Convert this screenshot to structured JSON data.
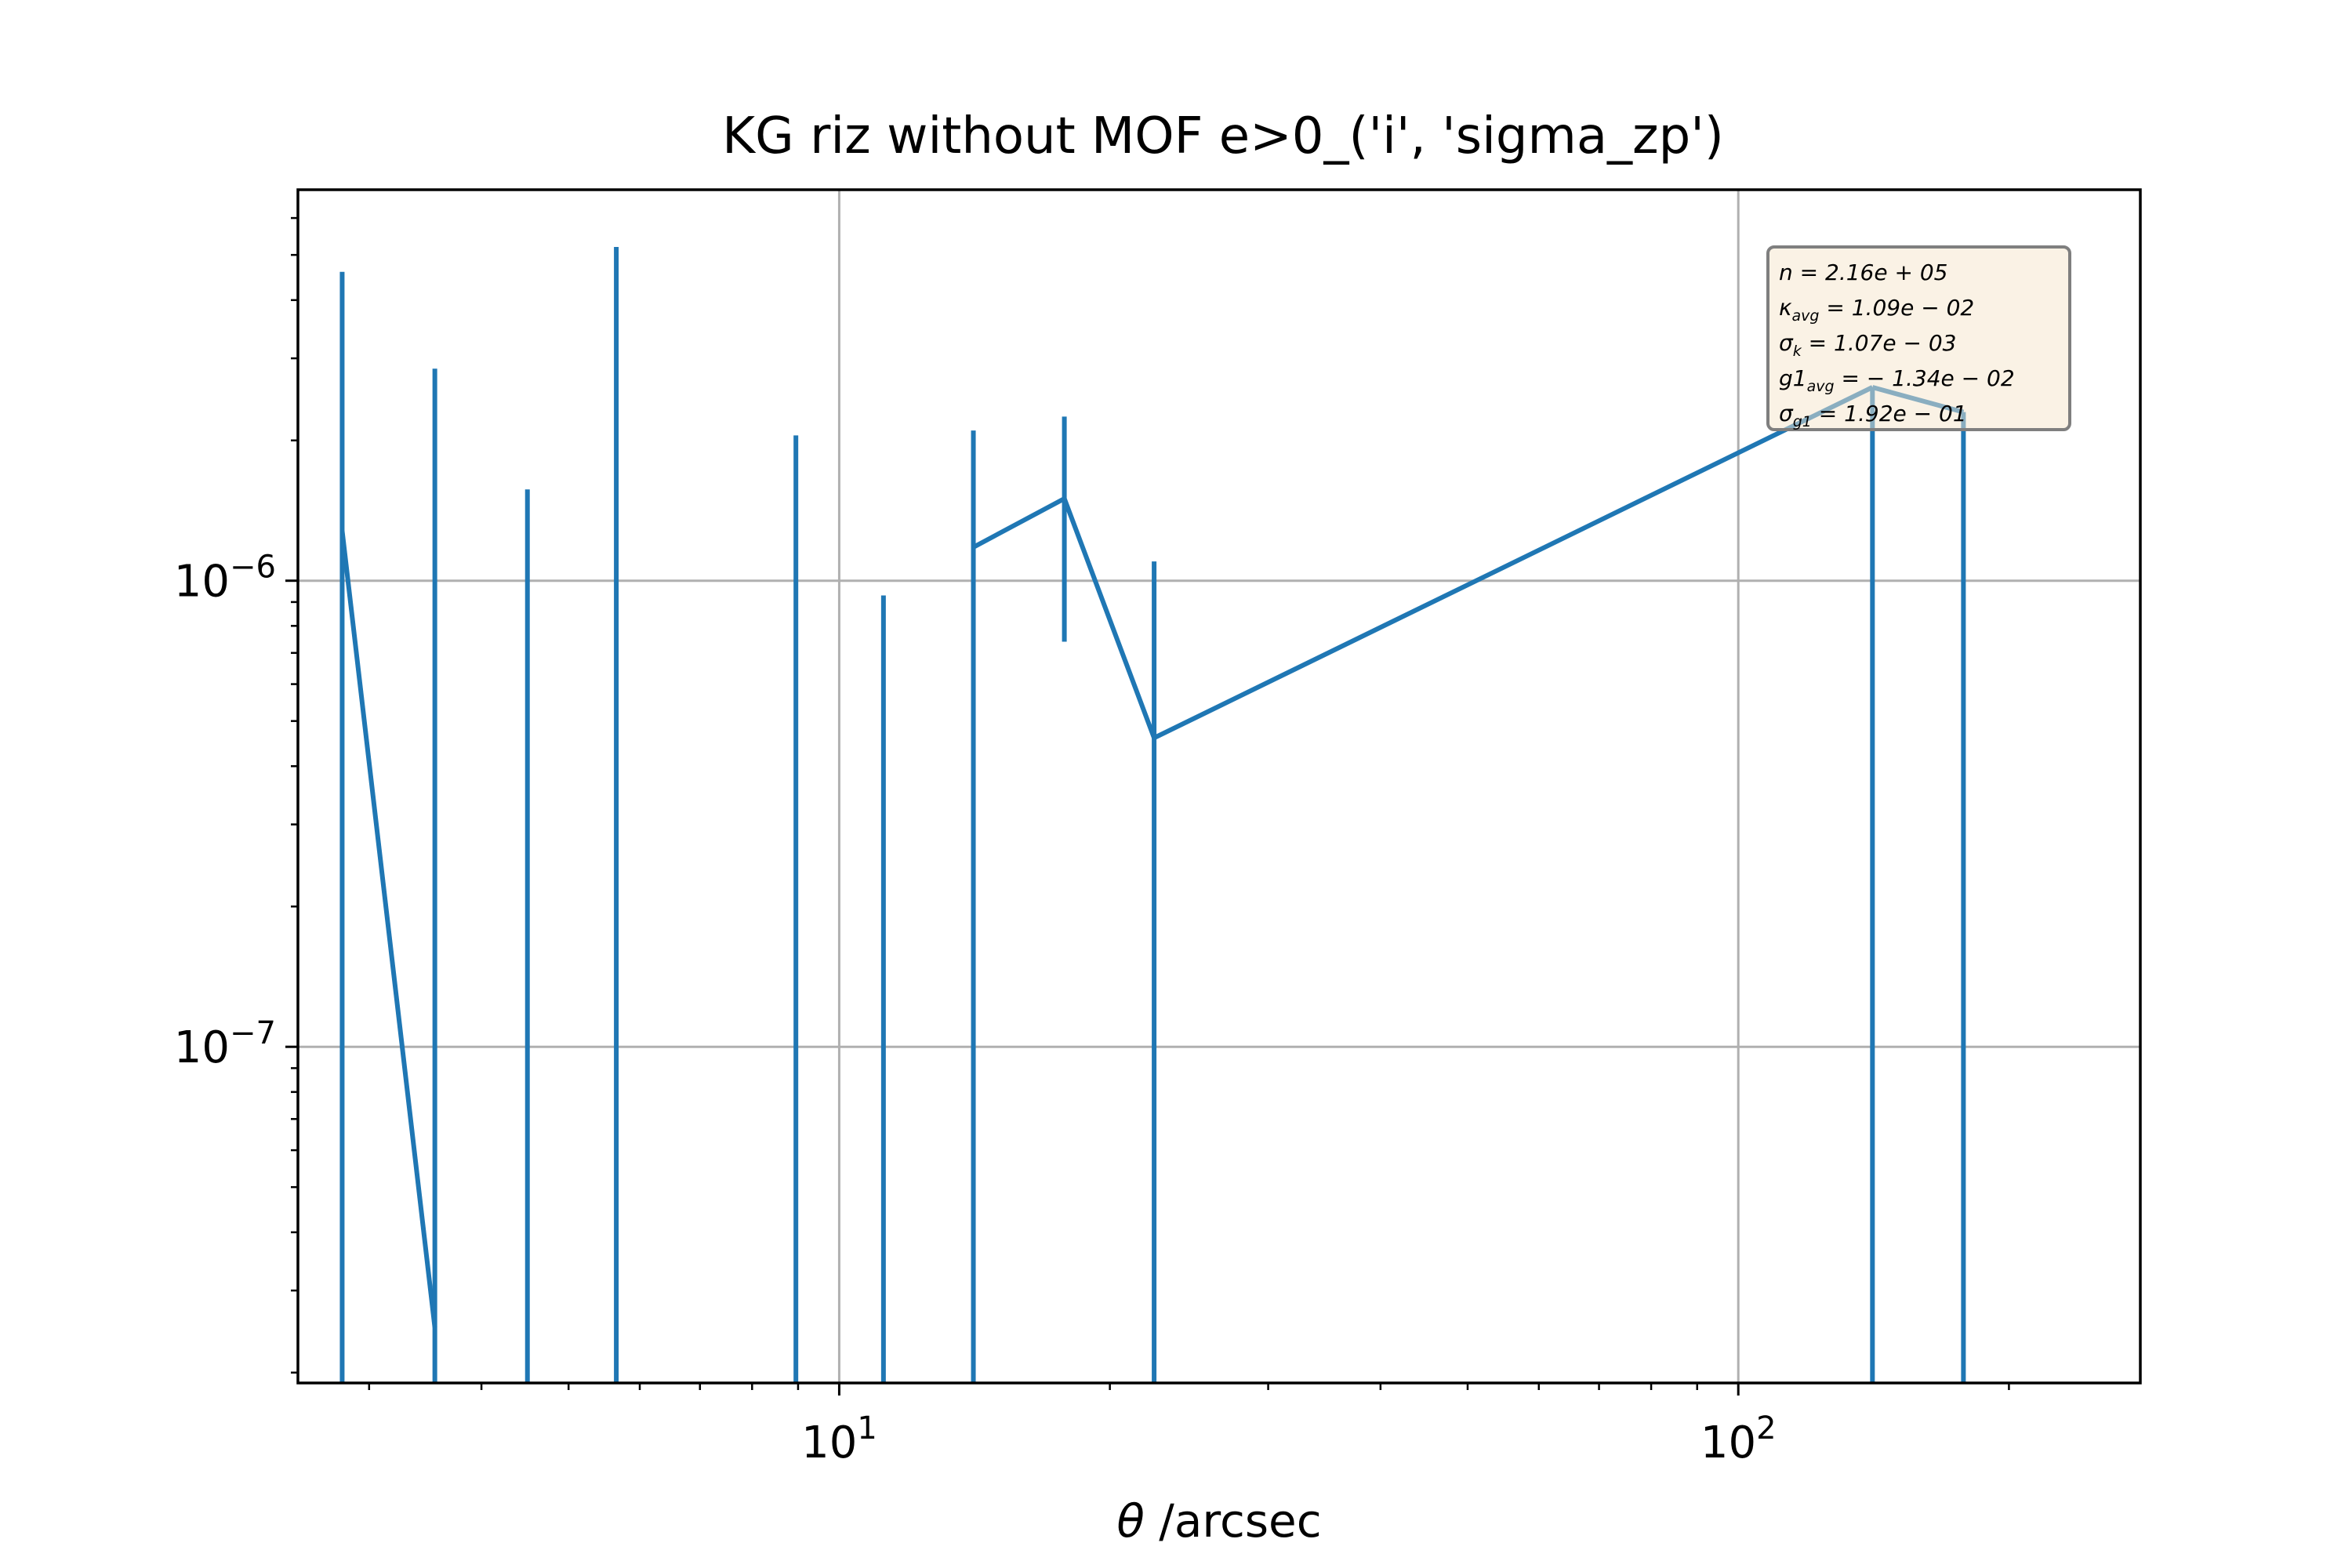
{
  "chart_data": {
    "type": "line",
    "title": "KG riz without MOF e>0_('i', 'sigma_zp')",
    "xlabel_symbol": "θ",
    "xlabel": " /arcsec",
    "ylabel": "",
    "xscale": "log",
    "yscale": "log",
    "xlim": [
      2.5,
      280
    ],
    "ylim": [
      1.9e-08,
      6.9e-06
    ],
    "grid": true,
    "series_color": "#1f77b4",
    "x_ticks": [
      {
        "base": "10",
        "exp": "1",
        "value": 10
      },
      {
        "base": "10",
        "exp": "2",
        "value": 100
      }
    ],
    "y_ticks": [
      {
        "base": "10",
        "exp": "−6",
        "value": 1e-06
      },
      {
        "base": "10",
        "exp": "−7",
        "value": 1e-07
      }
    ],
    "points": [
      {
        "x": 2.8,
        "y": 1.28e-06,
        "err_low": 1.9e-08,
        "err_high": 4.6e-06
      },
      {
        "x": 3.55,
        "y": 2.5e-08,
        "err_low": 1.9e-08,
        "err_high": 2.85e-06
      },
      {
        "x": 4.5,
        "y": null,
        "err_low": 1.9e-08,
        "err_high": 1.57e-06
      },
      {
        "x": 5.65,
        "y": null,
        "err_low": 1.9e-08,
        "err_high": 5.2e-06
      },
      {
        "x": 8.95,
        "y": null,
        "err_low": 1.9e-08,
        "err_high": 2.05e-06
      },
      {
        "x": 11.2,
        "y": null,
        "err_low": 1.9e-08,
        "err_high": 9.3e-07
      },
      {
        "x": 14.1,
        "y": 1.18e-06,
        "err_low": 1.9e-08,
        "err_high": 2.1e-06
      },
      {
        "x": 17.8,
        "y": 1.5e-06,
        "err_low": 7.4e-07,
        "err_high": 2.25e-06
      },
      {
        "x": 22.4,
        "y": 4.6e-07,
        "err_low": 1.9e-08,
        "err_high": 1.1e-06
      },
      {
        "x": 141,
        "y": 2.6e-06,
        "err_low": 1.9e-08,
        "err_high": 2.6e-06
      },
      {
        "x": 178,
        "y": 2.3e-06,
        "err_low": 1.9e-08,
        "err_high": 2.3e-06
      }
    ],
    "annotation": {
      "lines": [
        {
          "main": "n = 2.16e + 05",
          "sub": ""
        },
        {
          "main": "κ",
          "sub": "avg",
          "rest": " = 1.09e − 02"
        },
        {
          "main": "σ",
          "sub": "k",
          "rest": " = 1.07e − 03"
        },
        {
          "main": "g1",
          "sub": "avg",
          "rest": " = − 1.34e − 02"
        },
        {
          "main": "σ",
          "sub": "g1",
          "rest": " = 1.92e − 01"
        }
      ],
      "box_color": "#f5e6cc",
      "border_color": "#7f7f7f"
    }
  }
}
